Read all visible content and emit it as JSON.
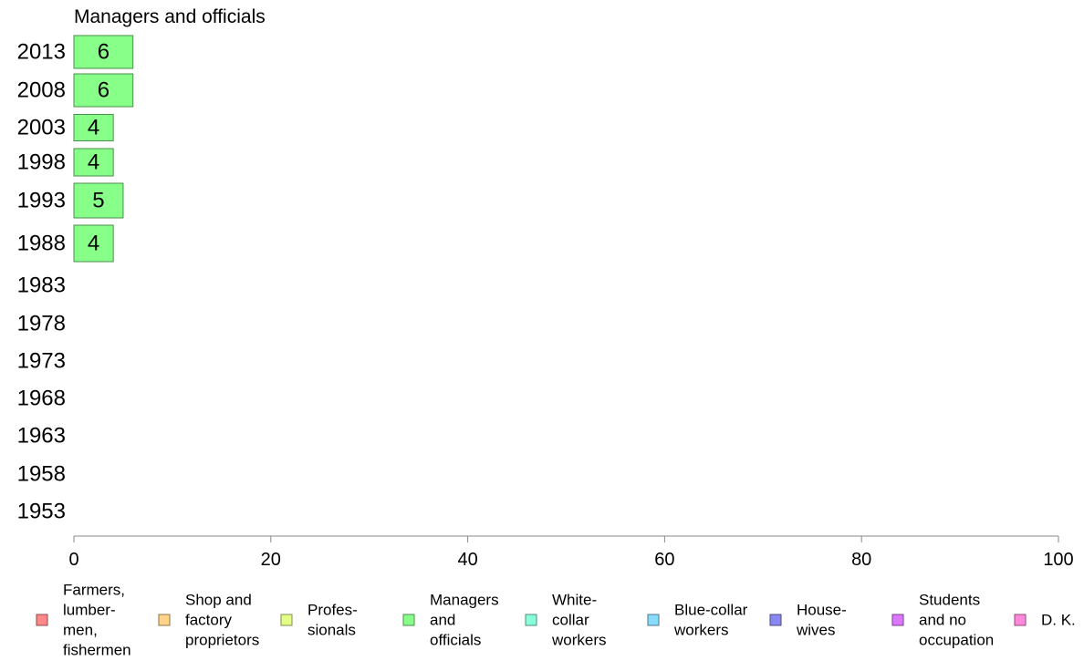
{
  "chart_data": {
    "type": "bar",
    "orientation": "horizontal",
    "title": "Managers and officials",
    "categories": [
      "2013",
      "2008",
      "2003",
      "1998",
      "1993",
      "1988",
      "1983",
      "1978",
      "1973",
      "1968",
      "1963",
      "1958",
      "1953"
    ],
    "series": [
      {
        "name": "Managers and officials",
        "color": "#88ff88",
        "values": [
          6,
          6,
          4,
          4,
          5,
          4,
          null,
          null,
          null,
          null,
          null,
          null,
          null
        ],
        "labels": [
          "6",
          "6",
          "4",
          "4",
          "5",
          "4",
          "",
          "",
          "",
          "",
          "",
          "",
          ""
        ]
      }
    ],
    "xlim": [
      0,
      100
    ],
    "xticks": [
      "0",
      "20",
      "40",
      "60",
      "80",
      "100"
    ],
    "xlabel": "",
    "ylabel": "",
    "grid": false,
    "legend_position": "bottom",
    "legend": [
      {
        "lines": [
          "Farmers,",
          "lumber-",
          "men,",
          "fishermen"
        ],
        "color": "#ff8888"
      },
      {
        "lines": [
          "Shop and",
          "factory",
          "proprietors"
        ],
        "color": "#ffd488"
      },
      {
        "lines": [
          "Profes-",
          "sionals"
        ],
        "color": "#e4ff88"
      },
      {
        "lines": [
          "Managers",
          "and",
          "officials"
        ],
        "color": "#88ff88"
      },
      {
        "lines": [
          "White-",
          "collar",
          "workers"
        ],
        "color": "#88ffd8"
      },
      {
        "lines": [
          "Blue-collar",
          "workers"
        ],
        "color": "#88ddff"
      },
      {
        "lines": [
          "House-",
          "wives"
        ],
        "color": "#8888f0"
      },
      {
        "lines": [
          "Students",
          "and no",
          "occupation"
        ],
        "color": "#dd77ff"
      },
      {
        "lines": [
          "D. K."
        ],
        "color": "#ff88dd"
      }
    ]
  }
}
